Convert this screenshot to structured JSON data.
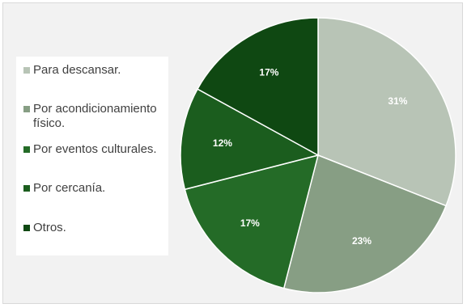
{
  "chart_data": {
    "type": "pie",
    "categories": [
      "Para descansar.",
      "Por acondicionamiento físico.",
      "Por eventos culturales.",
      "Por cercanía.",
      "Otros."
    ],
    "values": [
      31,
      23,
      17,
      12,
      17
    ],
    "value_labels": [
      "31%",
      "23%",
      "17%",
      "12%",
      "17%"
    ],
    "colors": [
      "#b8c4b6",
      "#879e84",
      "#246b27",
      "#1b5d1e",
      "#0f4812"
    ],
    "legend_position": "left",
    "start_angle_deg": 0,
    "direction": "clockwise"
  }
}
